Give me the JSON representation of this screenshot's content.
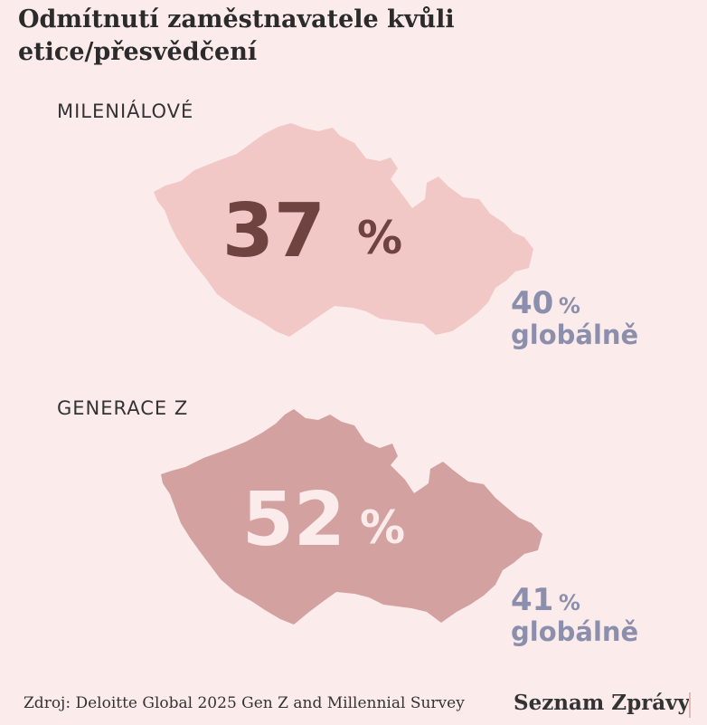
{
  "title": "Odmítnutí zaměstnavatele kvůli etice/přesvědčení",
  "source": "Zdroj: Deloitte Global 2025 Gen Z and Millennial Survey",
  "brand": "Seznam Zprávy",
  "colors": {
    "background": "#fbeceb",
    "millennials_map": "#f1c8c6",
    "genz_map": "#d4a1a1",
    "millennials_value": "#6e4340",
    "genz_value": "#fbeceb",
    "global_text": "#8c8fac"
  },
  "chart_data": [
    {
      "type": "table",
      "group": "MILENIÁLOVÉ",
      "czech_value": 37,
      "czech_display": "37",
      "unit": "%",
      "global_value": 40,
      "global_display": "40",
      "global_unit": "%",
      "global_label": "globálně"
    },
    {
      "type": "table",
      "group": "GENERACE Z",
      "czech_value": 52,
      "czech_display": "52",
      "unit": "%",
      "global_value": 41,
      "global_display": "41",
      "global_unit": "%",
      "global_label": "globálně"
    }
  ]
}
